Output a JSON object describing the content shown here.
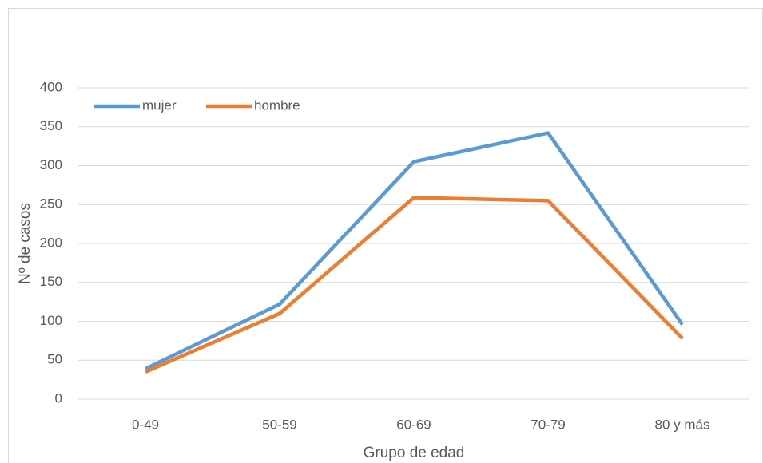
{
  "chart_data": {
    "type": "line",
    "categories": [
      "0-49",
      "50-59",
      "60-69",
      "70-79",
      "80 y más"
    ],
    "series": [
      {
        "name": "mujer",
        "color": "#5b9bd5",
        "values": [
          39,
          122,
          305,
          342,
          96
        ]
      },
      {
        "name": "hombre",
        "color": "#ed7d31",
        "values": [
          35,
          110,
          259,
          255,
          78
        ]
      }
    ],
    "x_label": "Grupo de edad",
    "y_label": "Nº de casos",
    "ylim": [
      0,
      400
    ],
    "yticks": [
      0,
      50,
      100,
      150,
      200,
      250,
      300,
      350,
      400
    ],
    "grid": true,
    "legend": "top-left"
  }
}
